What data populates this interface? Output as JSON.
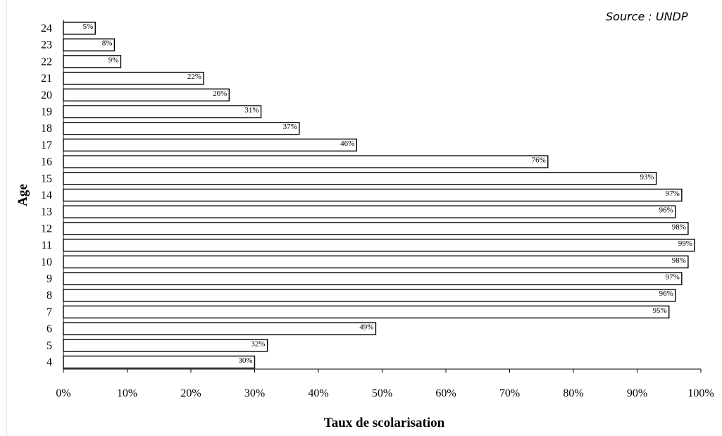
{
  "source_note": "Source : UNDP",
  "chart_data": {
    "type": "bar",
    "orientation": "horizontal",
    "categories": [
      "4",
      "5",
      "6",
      "7",
      "8",
      "9",
      "10",
      "11",
      "12",
      "13",
      "14",
      "15",
      "16",
      "17",
      "18",
      "19",
      "20",
      "21",
      "22",
      "23",
      "24"
    ],
    "values": [
      30,
      32,
      49,
      95,
      96,
      97,
      98,
      99,
      98,
      96,
      97,
      93,
      76,
      46,
      37,
      31,
      26,
      22,
      9,
      8,
      5
    ],
    "data_labels": [
      "30%",
      "32%",
      "49%",
      "95%",
      "96%",
      "97%",
      "98%",
      "99%",
      "98%",
      "96%",
      "97%",
      "93%",
      "76%",
      "46%",
      "37%",
      "31%",
      "26%",
      "22%",
      "9%",
      "8%",
      "5%"
    ],
    "xlabel": "Taux de scolarisation",
    "ylabel": "Age",
    "xlim": [
      0,
      100
    ],
    "xticks": [
      "0%",
      "10%",
      "20%",
      "30%",
      "40%",
      "50%",
      "60%",
      "70%",
      "80%",
      "90%",
      "100%"
    ],
    "bar_fill": "#ffffff",
    "bar_stroke": "#000000",
    "grid": false,
    "legend": "none"
  }
}
